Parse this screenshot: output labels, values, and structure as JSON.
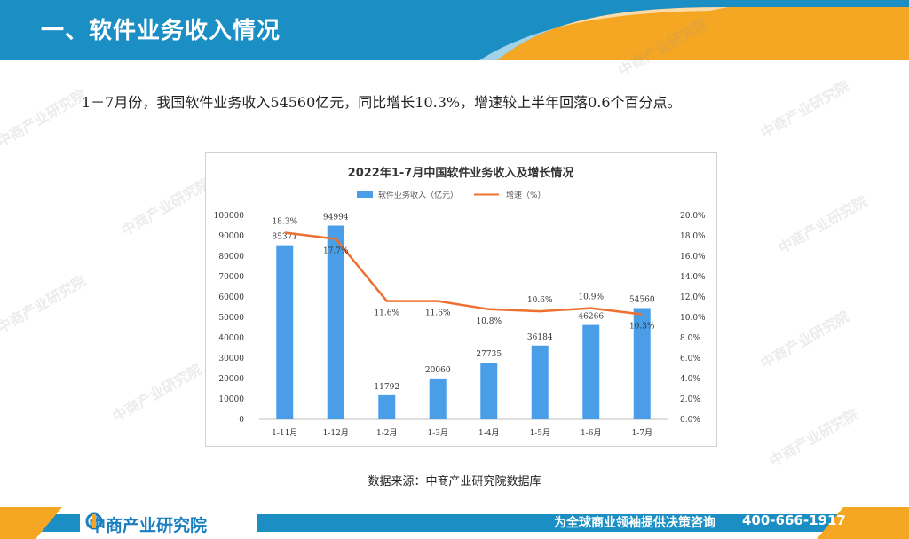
{
  "header": {
    "title": "一、软件业务收入情况",
    "colors": {
      "blue": "#1b8fc4",
      "orange": "#f5a623"
    }
  },
  "intro_text": "1－7月份，我国软件业务收入54560亿元，同比增长10.3%，增速较上半年回落0.6个百分点。",
  "source_text": "数据来源：中商产业研究院数据库",
  "footer": {
    "logo_text": "中商产业研究院",
    "slogan": "为全球商业领袖提供决策咨询",
    "phone": "400-666-1917"
  },
  "watermark_text": "中商产业研究院",
  "chart_data": {
    "type": "bar",
    "title": "2022年1-7月中国软件业务收入及增长情况",
    "categories": [
      "1-11月",
      "1-12月",
      "1-2月",
      "1-3月",
      "1-4月",
      "1-5月",
      "1-6月",
      "1-7月"
    ],
    "series": [
      {
        "name": "软件业务收入（亿元）",
        "type": "bar",
        "axis": "left",
        "color": "#4a9ee8",
        "values": [
          85371,
          94994,
          11792,
          20060,
          27735,
          36184,
          46266,
          54560
        ],
        "labels": [
          "85371",
          "94994",
          "11792",
          "20060",
          "27735",
          "36184",
          "46266",
          "54560"
        ]
      },
      {
        "name": "增速（%）",
        "type": "line",
        "axis": "right",
        "color": "#ed7030",
        "values": [
          18.3,
          17.7,
          11.6,
          11.6,
          10.8,
          10.6,
          10.9,
          10.3
        ],
        "labels": [
          "18.3%",
          "17.7%",
          "11.6%",
          "11.6%",
          "10.8%",
          "10.6%",
          "10.9%",
          "10.3%"
        ]
      }
    ],
    "ylim": [
      0,
      100000
    ],
    "yticks": [
      "0",
      "10000",
      "20000",
      "30000",
      "40000",
      "50000",
      "60000",
      "70000",
      "80000",
      "90000",
      "100000"
    ],
    "y2lim": [
      0,
      20
    ],
    "y2ticks": [
      "0.0%",
      "2.0%",
      "4.0%",
      "6.0%",
      "8.0%",
      "10.0%",
      "12.0%",
      "14.0%",
      "16.0%",
      "18.0%",
      "20.0%"
    ],
    "legend": "top",
    "grid": false
  }
}
